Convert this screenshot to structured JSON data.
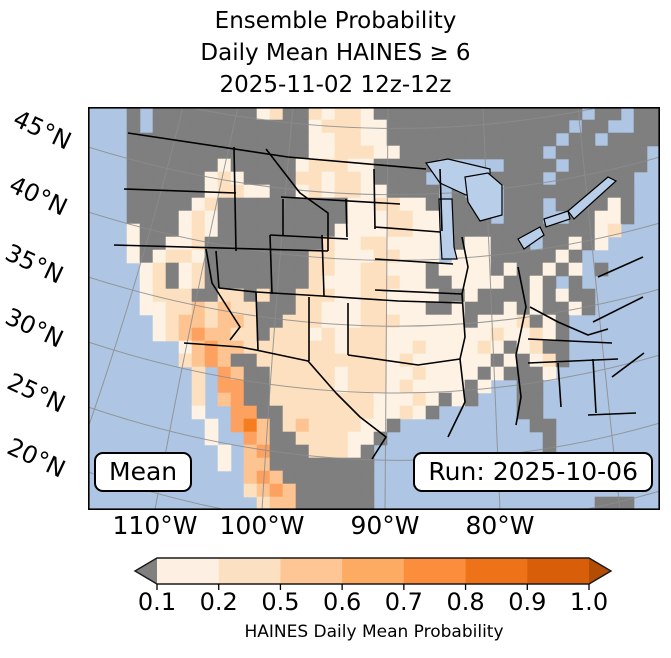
{
  "title": {
    "line1": "Ensemble Probability",
    "line2": "Daily Mean HAINES ≥ 6",
    "line3": "2025-11-02 12z-12z"
  },
  "map": {
    "corner_label": "Mean",
    "run_label": "Run: 2025-10-06",
    "lat_labels": [
      "45°N",
      "40°N",
      "35°N",
      "30°N",
      "25°N",
      "20°N"
    ],
    "lon_labels": [
      "110°W",
      "100°W",
      "90°W",
      "80°W"
    ],
    "ocean_color": "#aec6e3",
    "lake_color": "#b9cfe9",
    "graticule_color": "#8c8c8c",
    "border_color": "#000000",
    "palette": {
      ".": "",
      "g": "#7f7f7f",
      "a": "#fdf2e3",
      "b": "#fce0c0",
      "c": "#fdc491",
      "d": "#fda160",
      "e": "#f57d20"
    },
    "rows": [
      "...g.ggggggggabggbabbagggggggggggggggg.gg.gg",
      "...g.ggggggggggggabbbaagggggggggggggg.gg..gg",
      "...ggggggggggggggaabbaaggggggggggggg.gg.gggg",
      "...ggggggggggggggaabbbaaggggggggggg.ggggggg.",
      "...gggggggagggggabbbaaggggg.....gggg.gggggg..",
      "...ggggggabaggggbbabbagggg.....gggg.gggggg..",
      "...ggggggabbaaggababbaagggg.g...gggggggggg..",
      "...gggggabggggggggggaabbaag.gg..ggg.ggggag..",
      "...ggggabaggggggggggaaabbaa.ggg.ggg..ggaag..",
      "...agggabagggggggggaaaabbaa.gggggggggggab...",
      "...aggaabgggggggggbaabbaaaa.gaaggg.ggaga....",
      "...agabbaggggggggbbaaabbaaa.aaagggggag......",
      "....abgabggggggggbbaabbaaagaaaagaggaga.g....",
      "....abgabggggggggbaaabbbaaggaaaaggag.g......",
      "....abbbggbbgbggbbbaabbaaaaggaggggagagg.....",
      "....aabbcbcbbgggbbaaabbaaaggagggagaggag.....",
      ".....abccbccbggbbbaaabbbaaaaagaaabgag.......",
      ".....abcdccbbgbbbababbbaaaaaaaabaabag.......",
      ".......acdccbbbbbbbabbbaabaaaabagabgg.......",
      ".......bcdcggbbbbbbbbbbabaaaaaagagabg.......",
      "........b.dcggbbbbbabbbaabaaaagaggga........",
      "........b.ddggbbbbbabbbabaaaaga..gg.........",
      "........b.cdggbbbbbbbbaaabagag...gg.........",
      "........a..ddggbbbbbbbaabag......gg.........",
      ".........a.decgbcbbbbaag..........gg........",
      ".........a..dcggbbbbaag............g........",
      "..........a.cdgggbbbag.............g........",
      "..........a.ccgggggggg......................",
      "............cdcggggggg......................",
      "............bcdcgggggg......................",
      ".............bccgggggg.................ggg.."
    ]
  },
  "colorbar": {
    "ticks": [
      "0.1",
      "0.2",
      "0.5",
      "0.6",
      "0.7",
      "0.8",
      "0.9",
      "1.0"
    ],
    "caption": "HAINES Daily Mean Probability",
    "segment_colors": [
      "#fdf0e2",
      "#fce0c2",
      "#fdc694",
      "#fdaa63",
      "#fb8d3d",
      "#ee7318",
      "#d85e0a"
    ],
    "under_arrow_color": "#808080",
    "over_arrow_color": "#b34d04",
    "outline_color": "#1a1a1a"
  },
  "chart_data": {
    "type": "heatmap",
    "title": "Ensemble Probability Daily Mean HAINES ≥ 6 2025-11-02 12z-12z",
    "annotations": [
      "Mean",
      "Run: 2025-10-06"
    ],
    "colorbar_levels": [
      0.1,
      0.2,
      0.5,
      0.6,
      0.7,
      0.8,
      0.9,
      1.0
    ],
    "colorbar_label": "HAINES Daily Mean Probability",
    "x_ticks": [
      "110°W",
      "100°W",
      "90°W",
      "80°W"
    ],
    "y_ticks": [
      "45°N",
      "40°N",
      "35°N",
      "30°N",
      "25°N",
      "20°N"
    ],
    "legend": {
      "a": "probability 0.1–0.2",
      "b": "probability 0.2–0.5",
      "c": "probability 0.5–0.6",
      "d": "probability 0.6–0.7",
      "e": "probability 0.7–0.8",
      "g": "masked / below 0.1 (gray)",
      ".": "water"
    },
    "grid_note": "Cell grid encoded in map.rows (44 cols x 31 rows), 13px cells; highest probabilities over NW Mexico / SE Arizona."
  }
}
